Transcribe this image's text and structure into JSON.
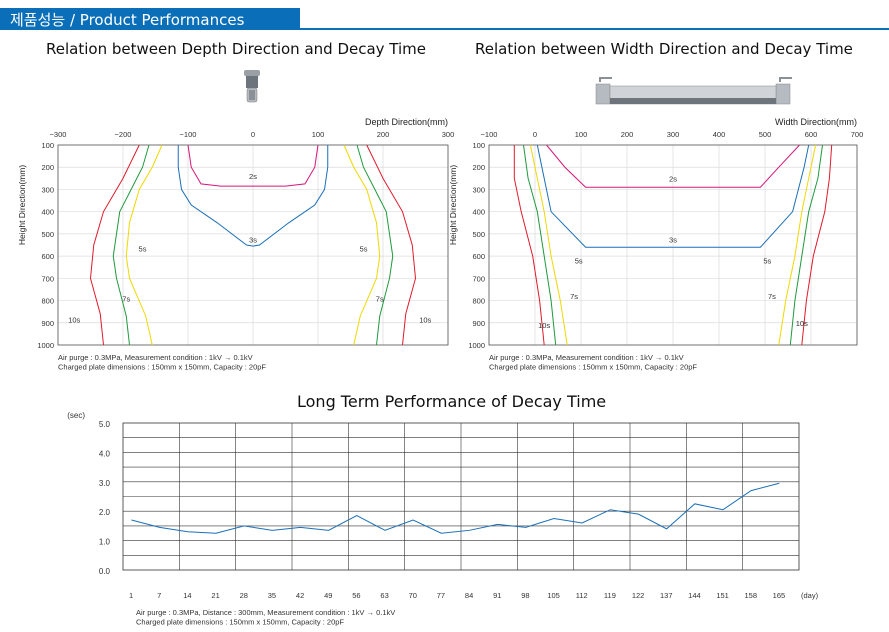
{
  "header": {
    "title": "제품성능 / Product Performances"
  },
  "colors": {
    "accent": "#0a6fb8",
    "red": "#e01a2a",
    "green": "#1d9a3c",
    "yellow": "#f0d800",
    "blue": "#1a6fb8",
    "magenta": "#d6167a"
  },
  "icons": {
    "left_image": "ionizer-nozzle-icon",
    "right_image": "ionizer-bar-icon"
  },
  "chart_data": [
    {
      "type": "line",
      "title": "Relation between Depth Direction and Decay Time",
      "xlabel": "Depth Direction(mm)",
      "ylabel": "Height Direction(mm)",
      "xlim": [
        -300,
        300
      ],
      "ylim": [
        100,
        1000
      ],
      "xticks": [
        "−300",
        "−200",
        "−100",
        "0",
        "100",
        "200",
        "300"
      ],
      "yticks": [
        "100",
        "200",
        "300",
        "400",
        "500",
        "600",
        "700",
        "800",
        "900",
        "1000"
      ],
      "grid": true,
      "series": [
        {
          "name": "2s",
          "color": "magenta",
          "label_at": [
            0,
            240
          ],
          "x": [
            -100,
            -95,
            -80,
            -50,
            0,
            50,
            80,
            95,
            100
          ],
          "y": [
            100,
            200,
            275,
            285,
            285,
            285,
            275,
            200,
            100
          ]
        },
        {
          "name": "3s",
          "color": "blue",
          "label_at": [
            0,
            525
          ],
          "x": [
            -115,
            -115,
            -110,
            -95,
            -55,
            -10,
            0,
            10,
            55,
            95,
            110,
            115,
            115
          ],
          "y": [
            100,
            200,
            300,
            370,
            450,
            550,
            555,
            550,
            450,
            370,
            300,
            200,
            100
          ]
        },
        {
          "name": "5s",
          "color": "yellow",
          "label_at": [
            -170,
            565
          ],
          "x": [
            -140,
            -155,
            -175,
            -190,
            -195,
            -190,
            -165,
            -155
          ],
          "y": [
            100,
            200,
            300,
            450,
            600,
            700,
            870,
            1000
          ],
          "x2": [
            140,
            155,
            175,
            190,
            195,
            190,
            165,
            155
          ]
        },
        {
          "name": "7s",
          "color": "green",
          "label_at": [
            -195,
            790
          ],
          "x": [
            -160,
            -170,
            -205,
            -210,
            -215,
            -210,
            -195,
            -190
          ],
          "y": [
            100,
            200,
            400,
            500,
            600,
            700,
            870,
            1000
          ],
          "x2": [
            160,
            170,
            205,
            210,
            215,
            210,
            195,
            190
          ]
        },
        {
          "name": "10s",
          "color": "red",
          "label_at": [
            -275,
            885
          ],
          "x": [
            -175,
            -200,
            -230,
            -245,
            -250,
            -235,
            -230
          ],
          "y": [
            100,
            250,
            400,
            550,
            700,
            860,
            1000
          ],
          "x2": [
            175,
            200,
            230,
            245,
            250,
            235,
            230
          ]
        }
      ],
      "note_lines": [
        "Air purge : 0.3MPa, Measurement condition : 1kV → 0.1kV",
        "Charged plate dimensions : 150mm x 150mm, Capacity : 20pF"
      ]
    },
    {
      "type": "line",
      "title": "Relation between Width Direction and Decay Time",
      "xlabel": "Width Direction(mm)",
      "ylabel": "Height Direction(mm)",
      "xlim": [
        -100,
        700
      ],
      "ylim": [
        100,
        1000
      ],
      "xticks": [
        "−100",
        "0",
        "100",
        "200",
        "300",
        "400",
        "500",
        "600",
        "700"
      ],
      "yticks": [
        "100",
        "200",
        "300",
        "400",
        "500",
        "600",
        "700",
        "800",
        "900",
        "1000"
      ],
      "grid": true,
      "series": [
        {
          "name": "2s",
          "color": "magenta",
          "x": [
            25,
            65,
            110,
            490,
            530,
            575
          ],
          "y": [
            100,
            200,
            290,
            290,
            200,
            100
          ],
          "label_at": [
            300,
            250
          ]
        },
        {
          "name": "3s",
          "color": "blue",
          "x": [
            5,
            15,
            35,
            110,
            490,
            560,
            585,
            595
          ],
          "y": [
            100,
            200,
            400,
            560,
            560,
            400,
            200,
            100
          ],
          "label_at": [
            300,
            525
          ]
        },
        {
          "name": "5s",
          "color": "yellow",
          "x": [
            -10,
            5,
            20,
            35,
            55,
            70
          ],
          "y": [
            100,
            250,
            400,
            600,
            800,
            1000
          ],
          "x2": [
            610,
            595,
            580,
            565,
            545,
            530
          ],
          "label_at": [
            [
              95,
              620
            ],
            [
              505,
              620
            ]
          ]
        },
        {
          "name": "7s",
          "color": "green",
          "x": [
            -25,
            -15,
            5,
            20,
            35,
            45
          ],
          "y": [
            100,
            250,
            400,
            600,
            800,
            1000
          ],
          "x2": [
            625,
            615,
            595,
            580,
            565,
            555
          ],
          "label_at": [
            [
              85,
              780
            ],
            [
              515,
              780
            ]
          ]
        },
        {
          "name": "10s",
          "color": "red",
          "x": [
            -45,
            -45,
            -30,
            -5,
            10,
            20
          ],
          "y": [
            100,
            250,
            400,
            600,
            800,
            1000
          ],
          "x2": [
            645,
            640,
            630,
            605,
            590,
            580
          ],
          "label_at": [
            [
              20,
              910
            ],
            [
              580,
              900
            ]
          ]
        }
      ],
      "note_lines": [
        "Air purge : 0.3MPa, Measurement condition : 1kV → 0.1kV",
        "Charged plate dimensions : 150mm x 150mm, Capacity : 20pF"
      ]
    },
    {
      "type": "line",
      "title": "Long Term Performance of Decay Time",
      "xlabel": "(day)",
      "ylabel": "(sec)",
      "ylim": [
        0,
        5
      ],
      "yticks": [
        "0.0",
        "1.0",
        "2.0",
        "3.0",
        "4.0",
        "5.0"
      ],
      "categories": [
        "1",
        "7",
        "14",
        "21",
        "28",
        "35",
        "42",
        "49",
        "56",
        "63",
        "70",
        "77",
        "84",
        "91",
        "98",
        "105",
        "112",
        "119",
        "122",
        "137",
        "144",
        "151",
        "158",
        "165"
      ],
      "values": [
        1.7,
        1.45,
        1.3,
        1.25,
        1.5,
        1.35,
        1.45,
        1.35,
        1.85,
        1.35,
        1.7,
        1.25,
        1.35,
        1.55,
        1.45,
        1.75,
        1.6,
        2.05,
        1.9,
        1.4,
        2.25,
        2.05,
        2.7,
        2.95
      ],
      "grid": true,
      "series_color": "blue",
      "note_lines": [
        "Air purge : 0.3MPa, Distance : 300mm, Measurement condition : 1kV → 0.1kV",
        "Charged plate dimensions : 150mm x 150mm, Capacity : 20pF"
      ]
    }
  ]
}
